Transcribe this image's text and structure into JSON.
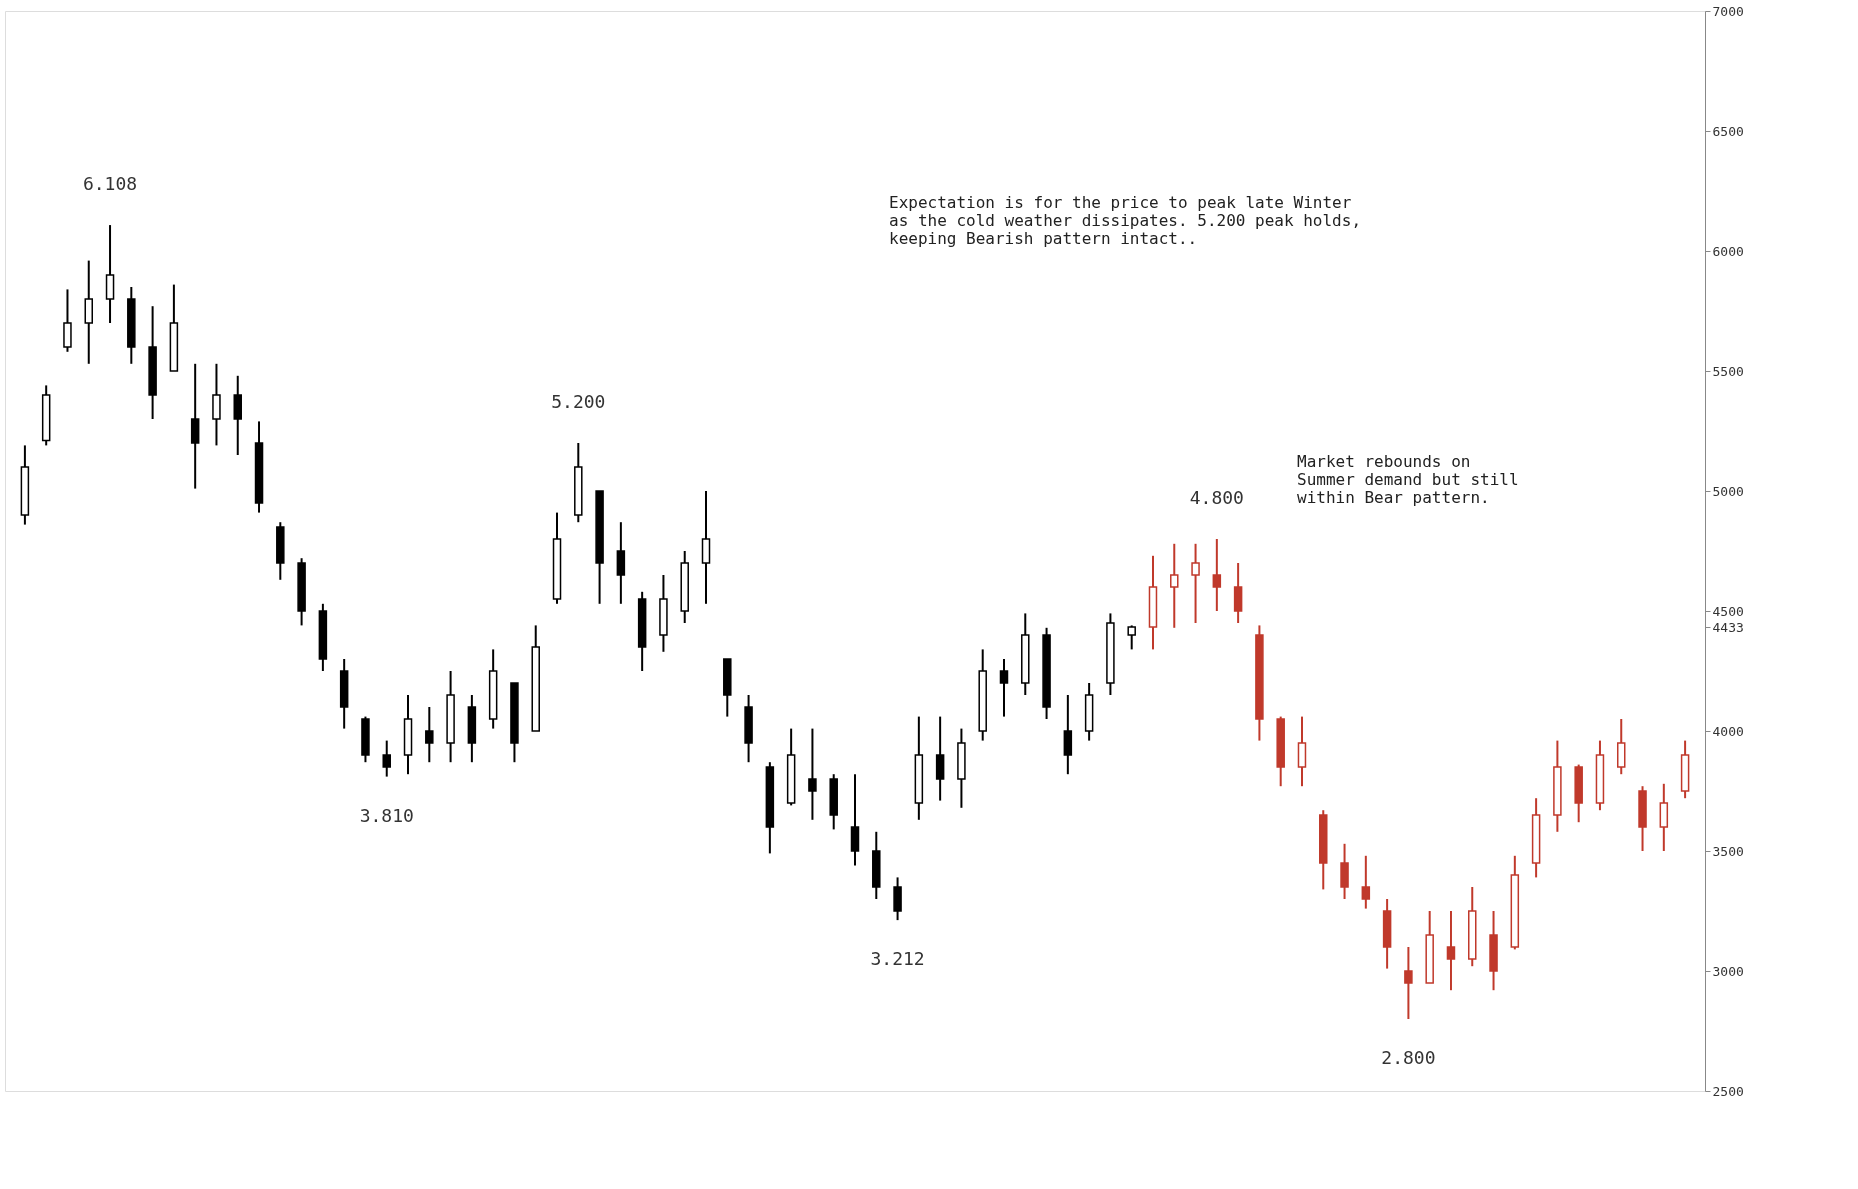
{
  "chart_data": {
    "type": "candlestick",
    "categories": [
      null,
      null,
      null,
      null,
      null,
      null,
      null,
      null,
      null,
      null,
      null,
      null,
      null,
      null,
      null,
      null,
      null,
      null,
      null,
      null,
      null,
      null,
      null,
      null,
      null,
      null,
      null,
      null,
      null,
      null,
      null,
      null,
      null,
      null,
      null,
      null,
      null,
      null,
      null,
      null,
      null,
      null,
      null,
      null,
      null,
      null,
      null,
      null,
      null,
      null,
      null,
      null,
      null,
      null,
      null,
      null,
      null,
      null,
      null,
      null,
      null,
      null,
      null,
      null,
      null,
      null,
      null,
      null,
      null,
      null,
      null,
      null,
      null,
      null,
      null,
      null,
      null,
      null,
      null
    ],
    "ohlc": [
      [
        4900,
        5190,
        4860,
        5100
      ],
      [
        5210,
        5440,
        5190,
        5400
      ],
      [
        5600,
        5840,
        5580,
        5700
      ],
      [
        5700,
        5960,
        5530,
        5800
      ],
      [
        5800,
        6108,
        5700,
        5900
      ],
      [
        5800,
        5850,
        5530,
        5600
      ],
      [
        5600,
        5770,
        5300,
        5400
      ],
      [
        5500,
        5860,
        5500,
        5700
      ],
      [
        5300,
        5530,
        5010,
        5200
      ],
      [
        5300,
        5530,
        5190,
        5400
      ],
      [
        5400,
        5480,
        5150,
        5300
      ],
      [
        5200,
        5290,
        4910,
        4950
      ],
      [
        4850,
        4870,
        4630,
        4700
      ],
      [
        4700,
        4720,
        4440,
        4500
      ],
      [
        4500,
        4530,
        4250,
        4300
      ],
      [
        4250,
        4300,
        4010,
        4100
      ],
      [
        4050,
        4060,
        3870,
        3900
      ],
      [
        3900,
        3960,
        3810,
        3850
      ],
      [
        3900,
        4150,
        3820,
        4050
      ],
      [
        4000,
        4100,
        3870,
        3950
      ],
      [
        3950,
        4250,
        3870,
        4150
      ],
      [
        4100,
        4150,
        3870,
        3950
      ],
      [
        4050,
        4340,
        4010,
        4250
      ],
      [
        4200,
        4200,
        3870,
        3950
      ],
      [
        4000,
        4440,
        4000,
        4350
      ],
      [
        4550,
        4910,
        4530,
        4800
      ],
      [
        4900,
        5200,
        4870,
        5100
      ],
      [
        5000,
        5000,
        4530,
        4700
      ],
      [
        4750,
        4870,
        4530,
        4650
      ],
      [
        4550,
        4580,
        4250,
        4350
      ],
      [
        4400,
        4650,
        4330,
        4550
      ],
      [
        4500,
        4750,
        4450,
        4700
      ],
      [
        4700,
        5000,
        4530,
        4800
      ],
      [
        4300,
        4300,
        4060,
        4150
      ],
      [
        4100,
        4150,
        3870,
        3950
      ],
      [
        3850,
        3870,
        3490,
        3600
      ],
      [
        3700,
        4010,
        3690,
        3900
      ],
      [
        3800,
        4010,
        3630,
        3750
      ],
      [
        3800,
        3820,
        3590,
        3650
      ],
      [
        3600,
        3820,
        3440,
        3500
      ],
      [
        3500,
        3580,
        3300,
        3350
      ],
      [
        3350,
        3390,
        3212,
        3250
      ],
      [
        3700,
        4060,
        3630,
        3900
      ],
      [
        3900,
        4060,
        3710,
        3800
      ],
      [
        3800,
        4010,
        3680,
        3950
      ],
      [
        4000,
        4340,
        3960,
        4250
      ],
      [
        4250,
        4300,
        4060,
        4200
      ],
      [
        4200,
        4490,
        4150,
        4400
      ],
      [
        4400,
        4430,
        4050,
        4100
      ],
      [
        4000,
        4150,
        3820,
        3900
      ],
      [
        4000,
        4200,
        3960,
        4150
      ],
      [
        4200,
        4490,
        4150,
        4450
      ],
      [
        4400,
        4440,
        4340,
        4433
      ],
      [
        4433,
        4730,
        4340,
        4600
      ],
      [
        4600,
        4780,
        4430,
        4650
      ],
      [
        4650,
        4780,
        4450,
        4700
      ],
      [
        4650,
        4800,
        4500,
        4600
      ],
      [
        4600,
        4700,
        4450,
        4500
      ],
      [
        4400,
        4440,
        3960,
        4050
      ],
      [
        4050,
        4060,
        3770,
        3850
      ],
      [
        3850,
        4060,
        3770,
        3950
      ],
      [
        3650,
        3670,
        3340,
        3450
      ],
      [
        3450,
        3530,
        3300,
        3350
      ],
      [
        3350,
        3480,
        3260,
        3300
      ],
      [
        3250,
        3300,
        3010,
        3100
      ],
      [
        3000,
        3100,
        2800,
        2950
      ],
      [
        2950,
        3250,
        2950,
        3150
      ],
      [
        3100,
        3250,
        2920,
        3050
      ],
      [
        3050,
        3350,
        3020,
        3250
      ],
      [
        3150,
        3250,
        2920,
        3000
      ],
      [
        3100,
        3480,
        3090,
        3400
      ],
      [
        3450,
        3720,
        3390,
        3650
      ],
      [
        3650,
        3960,
        3580,
        3850
      ],
      [
        3850,
        3860,
        3620,
        3700
      ],
      [
        3700,
        3960,
        3670,
        3900
      ],
      [
        3850,
        4050,
        3820,
        3950
      ],
      [
        3750,
        3770,
        3500,
        3600
      ],
      [
        3600,
        3780,
        3500,
        3700
      ],
      [
        3750,
        3960,
        3720,
        3900
      ]
    ],
    "colors": [
      "#000000",
      "#000000",
      "#000000",
      "#000000",
      "#000000",
      "#000000",
      "#000000",
      "#000000",
      "#000000",
      "#000000",
      "#000000",
      "#000000",
      "#000000",
      "#000000",
      "#000000",
      "#000000",
      "#000000",
      "#000000",
      "#000000",
      "#000000",
      "#000000",
      "#000000",
      "#000000",
      "#000000",
      "#000000",
      "#000000",
      "#000000",
      "#000000",
      "#000000",
      "#000000",
      "#000000",
      "#000000",
      "#000000",
      "#000000",
      "#000000",
      "#000000",
      "#000000",
      "#000000",
      "#000000",
      "#000000",
      "#000000",
      "#000000",
      "#000000",
      "#000000",
      "#000000",
      "#000000",
      "#000000",
      "#000000",
      "#000000",
      "#000000",
      "#000000",
      "#000000",
      "#000000",
      "#c0392b",
      "#c0392b",
      "#c0392b",
      "#c0392b",
      "#c0392b",
      "#c0392b",
      "#c0392b",
      "#c0392b",
      "#c0392b",
      "#c0392b",
      "#c0392b",
      "#c0392b",
      "#c0392b",
      "#c0392b",
      "#c0392b",
      "#c0392b",
      "#c0392b",
      "#c0392b",
      "#c0392b",
      "#c0392b",
      "#c0392b",
      "#c0392b",
      "#c0392b",
      "#c0392b",
      "#c0392b",
      "#c0392b"
    ],
    "ylim": [
      2500,
      7000
    ],
    "yticks": [
      2500,
      3000,
      3500,
      4000,
      4433,
      4500,
      5000,
      5500,
      6000,
      6500,
      7000
    ],
    "grid": false,
    "annotations": [
      {
        "text": "6.108",
        "y": 6108
      },
      {
        "text": "5.200",
        "y": 5200
      },
      {
        "text": "3.810",
        "y": 3810
      },
      {
        "text": "3.212",
        "y": 3212
      },
      {
        "text": "4.800",
        "y": 4800
      },
      {
        "text": "2.800",
        "y": 2800
      },
      "Expectation is for the price to peak late Winter\nas the cold weather dissipates. 5.200 peak holds,\nkeeping Bearish pattern intact..",
      "Market rebounds on\nSummer demand but still\nwithin Bear pattern."
    ]
  }
}
